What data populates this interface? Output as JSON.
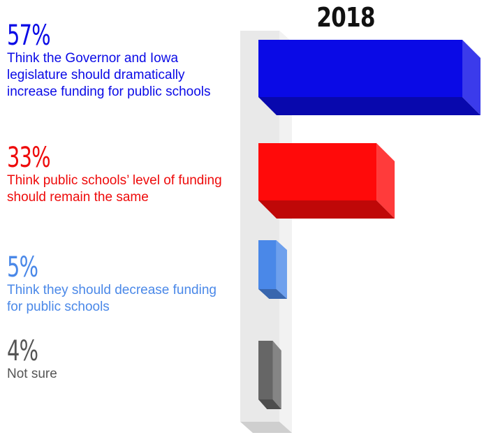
{
  "chart_data": {
    "type": "bar",
    "orientation": "horizontal",
    "title": "2018",
    "categories": [
      "Think the Governor and Iowa legislature should dramatically increase funding for public schools",
      "Think public schools’ level of funding should remain the same",
      "Think they should decrease funding for public schools",
      "Not sure"
    ],
    "values": [
      57,
      33,
      5,
      4
    ],
    "value_labels": [
      "57%",
      "33%",
      "5%",
      "4%"
    ],
    "colors": [
      "#0a0ae6",
      "#ff0a0a",
      "#4a88e8",
      "#666666"
    ],
    "xlim": [
      0,
      57
    ],
    "grid": false,
    "legend": "none"
  },
  "colors": {
    "text_colors": [
      "#0a0ae6",
      "#ee0a0a",
      "#4a88e8",
      "#555555"
    ],
    "shelf": "#e6e6e6"
  }
}
